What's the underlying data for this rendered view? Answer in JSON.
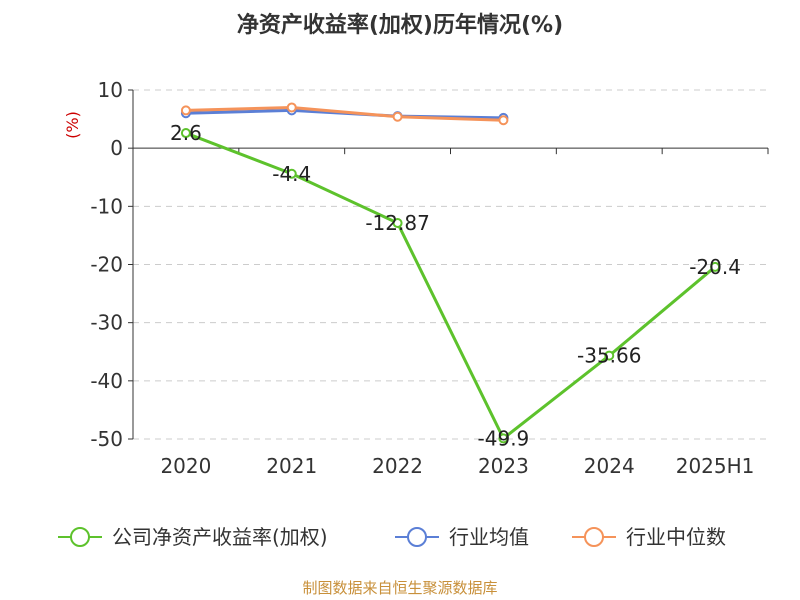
{
  "chart_data": {
    "type": "line",
    "title": "净资产收益率(加权)历年情况(%)",
    "unit_label": "(%)",
    "categories": [
      "2020",
      "2021",
      "2022",
      "2023",
      "2024",
      "2025H1"
    ],
    "ylim": [
      -50,
      10
    ],
    "yticks": [
      10,
      0,
      -10,
      -20,
      -30,
      -40,
      -50
    ],
    "grid": true,
    "legend_position": "bottom",
    "series": [
      {
        "name": "公司净资产收益率(加权)",
        "color": "#5dc22c",
        "values": [
          2.6,
          -4.4,
          -12.87,
          -49.9,
          -35.66,
          -20.4
        ],
        "labels": [
          "2.6",
          "-4.4",
          "-12.87",
          "-49.9",
          "-35.66",
          "-20.4"
        ]
      },
      {
        "name": "行业均值",
        "color": "#5b7fd6",
        "values": [
          6.0,
          6.5,
          5.5,
          5.2,
          null,
          null
        ]
      },
      {
        "name": "行业中位数",
        "color": "#f5935a",
        "values": [
          6.5,
          7.0,
          5.4,
          4.8,
          null,
          null
        ]
      }
    ]
  },
  "footer": {
    "source": "制图数据来自恒生聚源数据库"
  },
  "colors": {
    "unit": "#cc0000",
    "source": "#c8903a",
    "grid": "#cccccc",
    "axis": "#333333"
  }
}
